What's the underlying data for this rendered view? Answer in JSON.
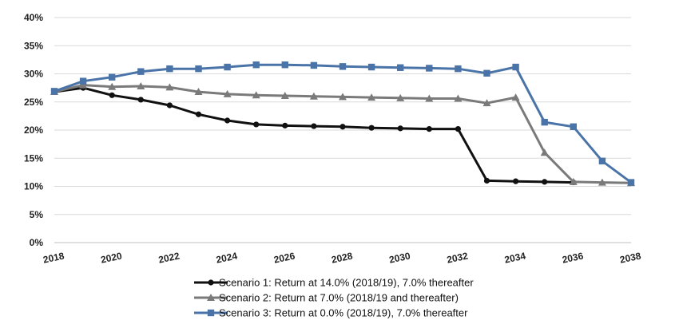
{
  "chart_data": {
    "type": "line",
    "title": "",
    "xlabel": "",
    "ylabel": "",
    "x": [
      2018,
      2019,
      2020,
      2021,
      2022,
      2023,
      2024,
      2025,
      2026,
      2027,
      2028,
      2029,
      2030,
      2031,
      2032,
      2033,
      2034,
      2035,
      2036,
      2037,
      2038
    ],
    "x_tick_labels": [
      "2018",
      "2020",
      "2022",
      "2024",
      "2026",
      "2028",
      "2030",
      "2032",
      "2034",
      "2036",
      "2038"
    ],
    "y_tick_labels": [
      "0%",
      "5%",
      "10%",
      "15%",
      "20%",
      "25%",
      "30%",
      "35%",
      "40%"
    ],
    "xlim": [
      2018,
      2038
    ],
    "ylim": [
      0,
      40
    ],
    "grid": "horizontal",
    "legend_position": "bottom",
    "series": [
      {
        "name": "Scenario 1: Return at 14.0% (2018/19), 7.0% thereafter",
        "color": "#111111",
        "marker": "circle",
        "values": [
          26.8,
          27.5,
          26.2,
          25.4,
          24.4,
          22.8,
          21.7,
          21.0,
          20.8,
          20.7,
          20.6,
          20.4,
          20.3,
          20.2,
          20.2,
          11.0,
          10.9,
          10.8,
          10.7,
          null,
          null
        ]
      },
      {
        "name": "Scenario 2: Return at 7.0% (2018/19 and thereafter)",
        "color": "#7a7a7a",
        "marker": "triangle",
        "values": [
          26.8,
          28.0,
          27.7,
          27.8,
          27.6,
          26.8,
          26.4,
          26.2,
          26.1,
          26.0,
          25.9,
          25.8,
          25.7,
          25.6,
          25.6,
          24.8,
          25.8,
          16.0,
          10.8,
          10.7,
          10.6
        ]
      },
      {
        "name": "Scenario 3: Return at 0.0% (2018/19), 7.0% thereafter",
        "color": "#4a74a8",
        "marker": "square",
        "values": [
          26.9,
          28.7,
          29.4,
          30.4,
          30.9,
          30.9,
          31.2,
          31.6,
          31.6,
          31.5,
          31.3,
          31.2,
          31.1,
          31.0,
          30.9,
          30.1,
          31.2,
          21.4,
          20.6,
          14.5,
          10.7
        ]
      }
    ]
  }
}
